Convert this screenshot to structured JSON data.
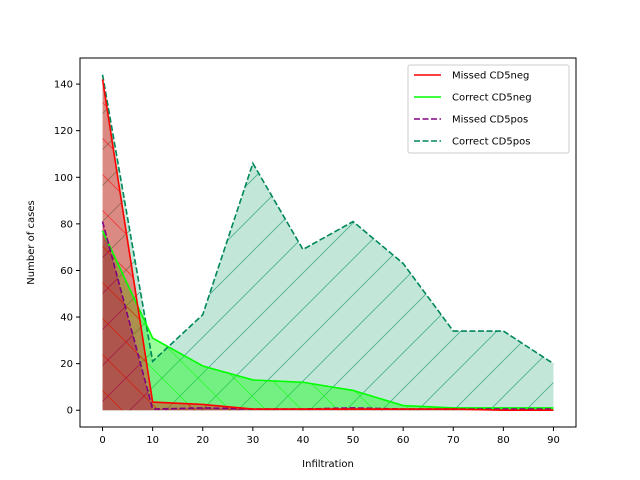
{
  "chart_data": {
    "type": "area",
    "xlabel": "Infiltration",
    "ylabel": "Number of cases",
    "xlim": [
      -4.5,
      94.5
    ],
    "ylim": [
      -7.2,
      151.2
    ],
    "xticks": [
      0,
      10,
      20,
      30,
      40,
      50,
      60,
      70,
      80,
      90
    ],
    "yticks": [
      0,
      20,
      40,
      60,
      80,
      100,
      120,
      140
    ],
    "grid": false,
    "legend_position": "top-right",
    "series": [
      {
        "name": "Correct CD5pos",
        "color": "#00875a",
        "fill": "#66c2a0",
        "linestyle": "dashed",
        "hatch": "forward-diagonal",
        "x": [
          0,
          10,
          20,
          30,
          40,
          50,
          60,
          70,
          80,
          90
        ],
        "y": [
          144,
          21,
          41,
          106,
          69,
          81,
          63,
          34,
          34,
          20
        ]
      },
      {
        "name": "Correct CD5neg",
        "color": "#00ff00",
        "fill": "#00ff00",
        "linestyle": "solid",
        "hatch": "back-diagonal",
        "x": [
          0,
          10,
          20,
          30,
          40,
          50,
          60,
          70,
          80,
          90
        ],
        "y": [
          77,
          31,
          19,
          13,
          12,
          8.5,
          2,
          1,
          1,
          1
        ]
      },
      {
        "name": "Missed CD5pos",
        "color": "#800080",
        "fill": "#800080",
        "linestyle": "dashed",
        "hatch": "forward-diagonal",
        "x": [
          0,
          10,
          20,
          30,
          40,
          50,
          60,
          70,
          80,
          90
        ],
        "y": [
          81,
          0.5,
          1,
          0.5,
          0.5,
          1,
          0.5,
          0.5,
          0.5,
          0.5
        ]
      },
      {
        "name": "Missed CD5neg",
        "color": "#ff0000",
        "fill": "#ff0000",
        "linestyle": "solid",
        "hatch": "back-diagonal",
        "x": [
          0,
          10,
          20,
          30,
          40,
          50,
          60,
          70,
          80,
          90
        ],
        "y": [
          142,
          3.5,
          2.5,
          0.5,
          0.5,
          0.5,
          0.5,
          0.5,
          0,
          0
        ]
      }
    ],
    "legend": [
      "Missed CD5neg",
      "Correct CD5neg",
      "Missed CD5pos",
      "Correct CD5pos"
    ]
  }
}
